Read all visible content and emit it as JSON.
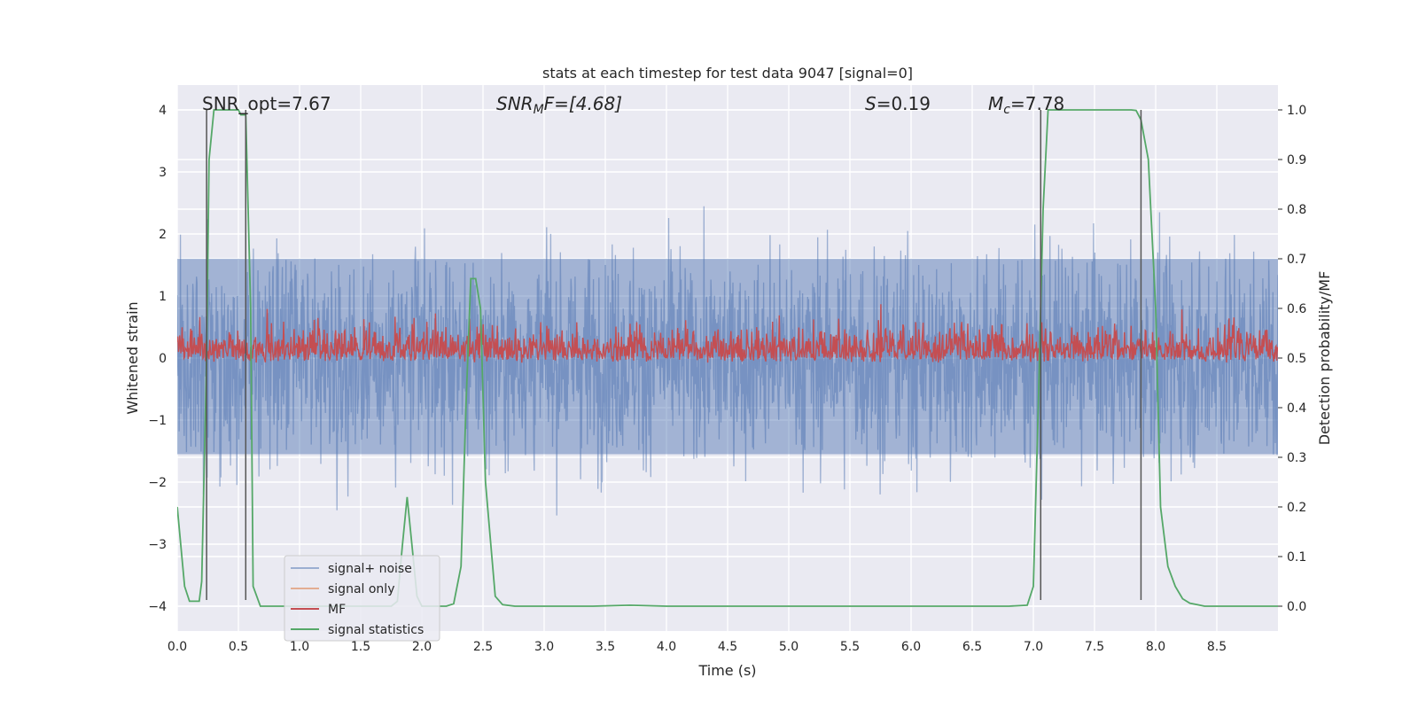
{
  "chart_data": {
    "type": "line",
    "title": "stats at each timestep for test data 9047 [signal=0]",
    "xlabel": "Time (s)",
    "ylabel_left": "Whitened strain",
    "ylabel_right": "Detection probability/MF",
    "xlim": [
      0.0,
      9.0
    ],
    "ylim_left": [
      -4.4,
      4.4
    ],
    "ylim_right": [
      -0.05,
      1.05
    ],
    "x_ticks": [
      "0.0",
      "0.5",
      "1.0",
      "1.5",
      "2.0",
      "2.5",
      "3.0",
      "3.5",
      "4.0",
      "4.5",
      "5.0",
      "5.5",
      "6.0",
      "6.5",
      "7.0",
      "7.5",
      "8.0",
      "8.5"
    ],
    "y_ticks_left": [
      "4",
      "3",
      "2",
      "1",
      "0",
      "−1",
      "−2",
      "−3",
      "−4"
    ],
    "y_ticks_right": [
      "1.0",
      "0.9",
      "0.8",
      "0.7",
      "0.6",
      "0.5",
      "0.4",
      "0.3",
      "0.2",
      "0.1",
      "0.0"
    ],
    "grid": true,
    "legend_position": "lower-left",
    "legend": [
      "signal+ noise",
      "signal only",
      "MF",
      "signal statistics"
    ],
    "colors": {
      "signal_noise": "#4c72b0",
      "signal_only": "#dd8452",
      "mf": "#c44e52",
      "signal_statistics": "#55a868",
      "vlines": "#555555",
      "background": "#eaeaf2"
    },
    "annotations": {
      "snr_opt": "SNR_opt=7.67",
      "snr_mf_base": "SNR",
      "snr_mf_sub": "M",
      "snr_mf_rest": "F=[4.68]",
      "s_symbol": "S",
      "s_value": "=0.19",
      "mc_symbol": "M",
      "mc_sub": "c",
      "mc_value": "=7.78"
    },
    "vertical_lines_x": [
      0.24,
      0.56,
      7.06,
      7.88
    ],
    "signal_noise_stats": {
      "core_min": -1.55,
      "core_max": 1.6,
      "peak_max": 4.0,
      "peak_min": -3.9,
      "x_range": [
        0.0,
        9.0
      ]
    },
    "mf_stats": {
      "center": 0.5,
      "spread": 0.05,
      "max": 0.62
    },
    "signal_statistics": {
      "x": [
        0.0,
        0.06,
        0.1,
        0.18,
        0.2,
        0.24,
        0.26,
        0.3,
        0.34,
        0.4,
        0.46,
        0.5,
        0.52,
        0.56,
        0.6,
        0.62,
        0.68,
        0.8,
        1.0,
        1.2,
        1.4,
        1.6,
        1.75,
        1.8,
        1.84,
        1.88,
        1.92,
        1.96,
        2.0,
        2.1,
        2.2,
        2.26,
        2.32,
        2.36,
        2.4,
        2.44,
        2.48,
        2.52,
        2.6,
        2.66,
        2.76,
        3.0,
        3.4,
        3.7,
        4.0,
        5.0,
        6.0,
        6.8,
        6.95,
        7.0,
        7.04,
        7.08,
        7.12,
        7.16,
        7.2,
        7.4,
        7.6,
        7.8,
        7.84,
        7.88,
        7.94,
        8.0,
        8.04,
        8.1,
        8.16,
        8.22,
        8.28,
        8.34,
        8.4,
        8.6,
        8.8,
        9.0
      ],
      "y": [
        0.2,
        0.04,
        0.01,
        0.01,
        0.05,
        0.5,
        0.9,
        1.0,
        1.0,
        1.0,
        1.0,
        1.0,
        0.99,
        0.99,
        0.6,
        0.04,
        0.0,
        0.0,
        0.0,
        0.0,
        0.0,
        0.0,
        0.0,
        0.01,
        0.12,
        0.22,
        0.12,
        0.02,
        0.0,
        0.0,
        0.0,
        0.005,
        0.08,
        0.4,
        0.66,
        0.66,
        0.6,
        0.25,
        0.02,
        0.003,
        0.0,
        0.0,
        0.0,
        0.002,
        0.0,
        0.0,
        0.0,
        0.0,
        0.002,
        0.04,
        0.4,
        0.8,
        1.0,
        1.0,
        1.0,
        1.0,
        1.0,
        1.0,
        0.999,
        0.98,
        0.9,
        0.6,
        0.2,
        0.08,
        0.04,
        0.015,
        0.006,
        0.003,
        0.0,
        0.0,
        0.0,
        0.0
      ]
    }
  }
}
